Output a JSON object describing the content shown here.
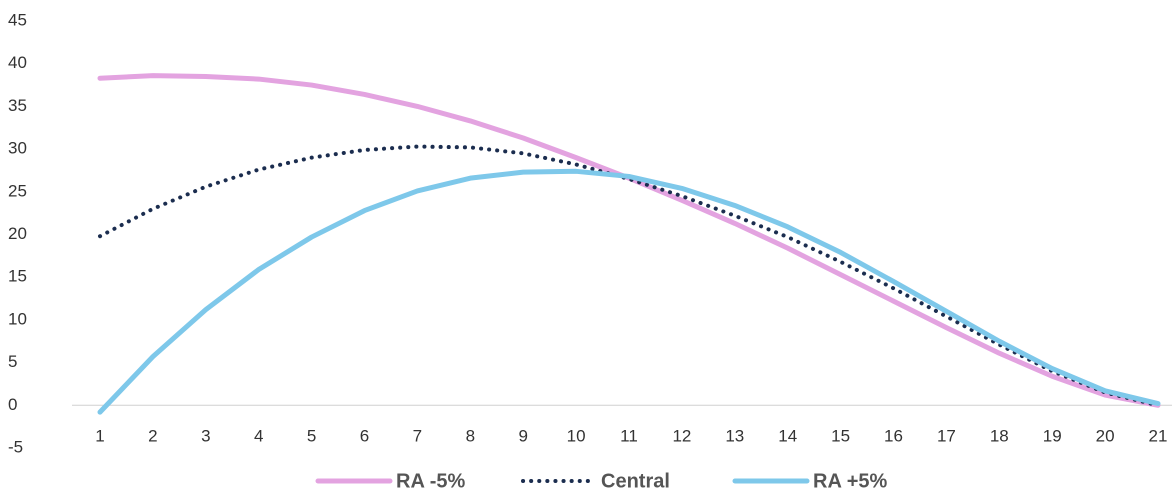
{
  "chart_data": {
    "type": "line",
    "categories": [
      "1",
      "2",
      "3",
      "4",
      "5",
      "6",
      "7",
      "8",
      "9",
      "10",
      "11",
      "12",
      "13",
      "14",
      "15",
      "16",
      "17",
      "18",
      "19",
      "20",
      "21"
    ],
    "series": [
      {
        "name": "RA -5%",
        "color": "#e3a3e0",
        "style": "solid",
        "values": [
          38.3,
          38.6,
          38.5,
          38.2,
          37.5,
          36.4,
          35.0,
          33.3,
          31.3,
          29.0,
          26.6,
          24.0,
          21.3,
          18.4,
          15.3,
          12.2,
          9.1,
          6.1,
          3.4,
          1.2,
          0
        ]
      },
      {
        "name": "Central",
        "color": "#1b2d4f",
        "style": "dotted",
        "values": [
          19.8,
          23.0,
          25.6,
          27.6,
          29.0,
          29.9,
          30.3,
          30.2,
          29.5,
          28.2,
          26.5,
          24.5,
          22.2,
          19.7,
          16.8,
          13.7,
          10.4,
          7.1,
          4.0,
          1.5,
          0
        ]
      },
      {
        "name": "RA +5%",
        "color": "#7ec8ea",
        "style": "solid",
        "values": [
          -0.8,
          5.7,
          11.2,
          15.9,
          19.7,
          22.8,
          25.1,
          26.6,
          27.3,
          27.4,
          26.8,
          25.4,
          23.4,
          20.9,
          17.9,
          14.5,
          11.0,
          7.5,
          4.3,
          1.7,
          0.2
        ]
      }
    ],
    "ylim": [
      -5,
      45
    ],
    "yticks": [
      -5,
      0,
      5,
      10,
      15,
      20,
      25,
      30,
      35,
      40,
      45
    ],
    "grid": false,
    "legend": "bottom"
  }
}
